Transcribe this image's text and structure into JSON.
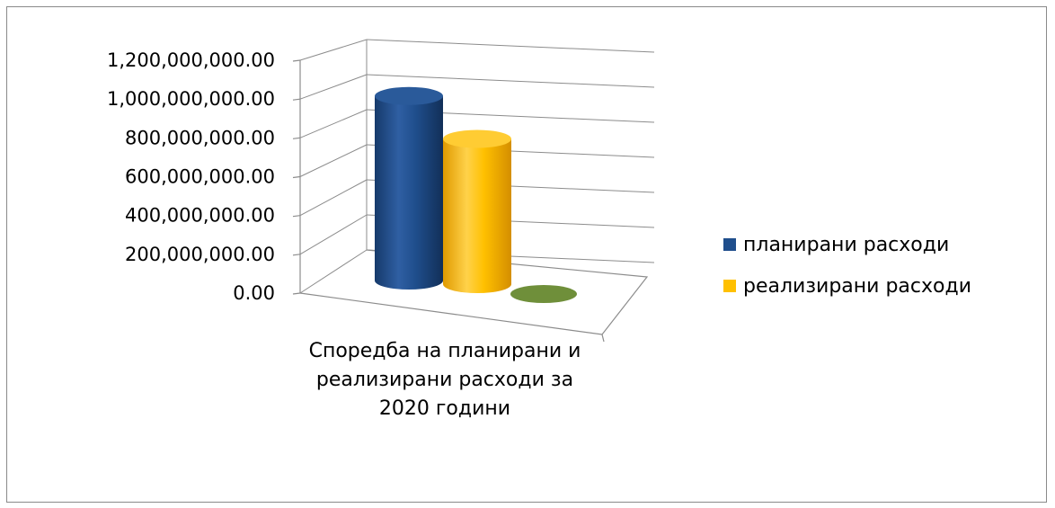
{
  "chart_data": {
    "type": "bar",
    "style": "3d-cylinder",
    "categories": [
      "Споредба на планирани и реализирани расходи за 2020 години"
    ],
    "series": [
      {
        "name": "планирани расходи",
        "values": [
          1080000000
        ],
        "color": "#1F4E8C"
      },
      {
        "name": "реализирани расходи",
        "values": [
          850000000
        ],
        "color": "#FFC000"
      },
      {
        "name": "",
        "values": [
          0
        ],
        "color": "#6F8F3A"
      }
    ],
    "yticks": [
      "0.00",
      "200,000,000.00",
      "400,000,000.00",
      "600,000,000.00",
      "800,000,000.00",
      "1,000,000,000.00",
      "1,200,000,000.00"
    ],
    "ylim": [
      0,
      1200000000
    ],
    "grid": true,
    "legend_position": "right"
  }
}
